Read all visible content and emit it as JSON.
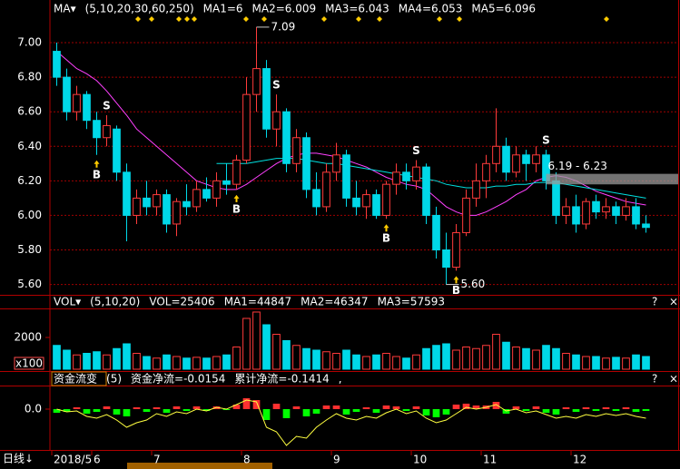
{
  "chart_data": [
    {
      "type": "candlestick",
      "header": [
        {
          "text": "MA▾",
          "color": "#ffffff"
        },
        {
          "text": "(5,10,20,30,60,250)",
          "color": "#ffff00"
        },
        {
          "text": "MA1=6",
          "color": "#ffffff"
        },
        {
          "text": "MA2=6.009",
          "color": "#ffff00"
        },
        {
          "text": "MA3=6.043",
          "color": "#ff40ff"
        },
        {
          "text": "MA4=6.053",
          "color": "#ff6060"
        },
        {
          "text": "MA5=6.096",
          "color": "#00ffff"
        }
      ],
      "categories": [
        "2018/5",
        null,
        null,
        null,
        "6",
        null,
        null,
        null,
        null,
        null,
        "7",
        null,
        null,
        null,
        null,
        null,
        null,
        null,
        null,
        "8",
        null,
        null,
        null,
        null,
        null,
        null,
        null,
        null,
        "9",
        null,
        null,
        null,
        null,
        null,
        null,
        null,
        "10",
        null,
        null,
        null,
        null,
        null,
        null,
        "11",
        null,
        null,
        null,
        null,
        null,
        null,
        null,
        null,
        "12",
        null,
        null,
        null,
        null,
        null,
        null,
        null
      ],
      "ohlc": [
        [
          6.95,
          7.0,
          6.75,
          6.8
        ],
        [
          6.8,
          6.85,
          6.55,
          6.6
        ],
        [
          6.6,
          6.75,
          6.55,
          6.7
        ],
        [
          6.7,
          6.72,
          6.5,
          6.55
        ],
        [
          6.55,
          6.6,
          6.35,
          6.45
        ],
        [
          6.45,
          6.58,
          6.4,
          6.52
        ],
        [
          6.5,
          6.52,
          6.2,
          6.25
        ],
        [
          6.25,
          6.3,
          5.85,
          6.0
        ],
        [
          6.0,
          6.15,
          5.95,
          6.1
        ],
        [
          6.1,
          6.2,
          6.0,
          6.05
        ],
        [
          6.05,
          6.15,
          6.0,
          6.12
        ],
        [
          6.12,
          6.15,
          5.9,
          5.95
        ],
        [
          5.95,
          6.1,
          5.88,
          6.08
        ],
        [
          6.08,
          6.18,
          6.0,
          6.05
        ],
        [
          6.05,
          6.2,
          6.02,
          6.15
        ],
        [
          6.15,
          6.22,
          6.08,
          6.1
        ],
        [
          6.1,
          6.25,
          6.05,
          6.2
        ],
        [
          6.2,
          6.3,
          6.12,
          6.18
        ],
        [
          6.18,
          6.35,
          6.15,
          6.32
        ],
        [
          6.32,
          6.8,
          6.3,
          6.7
        ],
        [
          6.7,
          7.09,
          6.6,
          6.85
        ],
        [
          6.85,
          6.9,
          6.45,
          6.5
        ],
        [
          6.5,
          6.7,
          6.4,
          6.6
        ],
        [
          6.6,
          6.62,
          6.25,
          6.3
        ],
        [
          6.3,
          6.5,
          6.25,
          6.45
        ],
        [
          6.45,
          6.48,
          6.1,
          6.15
        ],
        [
          6.15,
          6.25,
          6.0,
          6.05
        ],
        [
          6.05,
          6.3,
          6.02,
          6.25
        ],
        [
          6.25,
          6.42,
          6.2,
          6.35
        ],
        [
          6.35,
          6.38,
          6.05,
          6.1
        ],
        [
          6.1,
          6.2,
          6.0,
          6.05
        ],
        [
          6.05,
          6.15,
          5.98,
          6.12
        ],
        [
          6.12,
          6.15,
          5.98,
          6.0
        ],
        [
          6.0,
          6.2,
          5.98,
          6.18
        ],
        [
          6.18,
          6.3,
          6.12,
          6.25
        ],
        [
          6.25,
          6.3,
          6.15,
          6.2
        ],
        [
          6.2,
          6.32,
          6.15,
          6.28
        ],
        [
          6.28,
          6.3,
          5.95,
          6.0
        ],
        [
          6.0,
          6.05,
          5.75,
          5.8
        ],
        [
          5.8,
          5.9,
          5.6,
          5.7
        ],
        [
          5.7,
          5.95,
          5.68,
          5.9
        ],
        [
          5.9,
          6.15,
          5.88,
          6.1
        ],
        [
          6.1,
          6.3,
          6.05,
          6.2
        ],
        [
          6.2,
          6.35,
          6.1,
          6.3
        ],
        [
          6.3,
          6.62,
          6.25,
          6.4
        ],
        [
          6.4,
          6.45,
          6.2,
          6.25
        ],
        [
          6.25,
          6.4,
          6.22,
          6.35
        ],
        [
          6.35,
          6.38,
          6.2,
          6.3
        ],
        [
          6.3,
          6.4,
          6.25,
          6.35
        ],
        [
          6.35,
          6.38,
          6.15,
          6.2
        ],
        [
          6.2,
          6.25,
          5.95,
          6.0
        ],
        [
          6.0,
          6.1,
          5.95,
          6.05
        ],
        [
          6.05,
          6.12,
          5.9,
          5.95
        ],
        [
          5.95,
          6.1,
          5.92,
          6.08
        ],
        [
          6.08,
          6.12,
          5.98,
          6.02
        ],
        [
          6.02,
          6.1,
          5.98,
          6.05
        ],
        [
          6.05,
          6.08,
          5.95,
          6.0
        ],
        [
          6.0,
          6.1,
          5.97,
          6.05
        ],
        [
          6.05,
          6.1,
          5.92,
          5.95
        ],
        [
          5.95,
          6.0,
          5.9,
          5.93
        ]
      ],
      "up_color": "#ff3b3b",
      "down_color": "#00d8e8",
      "lines": [
        {
          "color": "#ff40ff",
          "values": [
            6.95,
            6.9,
            6.85,
            6.82,
            6.78,
            6.72,
            6.65,
            6.58,
            6.5,
            6.45,
            6.4,
            6.35,
            6.3,
            6.25,
            6.2,
            6.18,
            6.16,
            6.15,
            6.15,
            6.18,
            6.22,
            6.26,
            6.3,
            6.33,
            6.35,
            6.36,
            6.36,
            6.35,
            6.34,
            6.32,
            6.3,
            6.28,
            6.25,
            6.22,
            6.2,
            6.18,
            6.17,
            6.15,
            6.1,
            6.05,
            6.02,
            6.0,
            6.0,
            6.02,
            6.05,
            6.08,
            6.12,
            6.15,
            6.2,
            6.22,
            6.23,
            6.22,
            6.2,
            6.17,
            6.14,
            6.12,
            6.1,
            6.08,
            6.07,
            6.06
          ]
        },
        {
          "color": "#00e0e0",
          "values": [
            null,
            null,
            null,
            null,
            null,
            null,
            null,
            null,
            null,
            null,
            null,
            null,
            null,
            null,
            null,
            null,
            6.3,
            6.3,
            6.3,
            6.3,
            6.31,
            6.32,
            6.33,
            6.33,
            6.33,
            6.32,
            6.31,
            6.3,
            6.3,
            6.29,
            6.28,
            6.27,
            6.26,
            6.25,
            6.24,
            6.23,
            6.22,
            6.21,
            6.2,
            6.18,
            6.17,
            6.16,
            6.16,
            6.16,
            6.17,
            6.17,
            6.18,
            6.18,
            6.19,
            6.19,
            6.19,
            6.18,
            6.17,
            6.16,
            6.15,
            6.14,
            6.13,
            6.12,
            6.11,
            6.1
          ]
        }
      ],
      "ylim": [
        5.54,
        7.1
      ],
      "yticks": [
        {
          "value": 5.6,
          "label": "5.60"
        },
        {
          "value": 5.8,
          "label": "5.80"
        },
        {
          "value": 6.0,
          "label": "6.00"
        },
        {
          "value": 6.2,
          "label": "6.20"
        },
        {
          "value": 6.4,
          "label": "6.40"
        },
        {
          "value": 6.6,
          "label": "6.60"
        },
        {
          "value": 6.8,
          "label": "6.80"
        },
        {
          "value": 7.0,
          "label": "7.00"
        }
      ],
      "grid": true,
      "axis_color": "#ff4a4a",
      "high_label": {
        "index": 20,
        "value": 7.09
      },
      "low_label": {
        "index": 39,
        "value": 5.6,
        "label": "5.60"
      },
      "range_band": {
        "from": 6.19,
        "to": 6.23,
        "label": "6.19 - 6.23",
        "start_index": 49
      },
      "signals": [
        {
          "index": 4,
          "label": "B"
        },
        {
          "index": 5,
          "label": "S"
        },
        {
          "index": 18,
          "label": "B"
        },
        {
          "index": 22,
          "label": "S"
        },
        {
          "index": 33,
          "label": "B"
        },
        {
          "index": 36,
          "label": "S"
        },
        {
          "index": 40,
          "label": "B"
        },
        {
          "index": 49,
          "label": "S"
        }
      ]
    },
    {
      "type": "bar",
      "header": [
        {
          "text": "VOL▾",
          "color": "#ffffff"
        },
        {
          "text": "(5,10,20)",
          "color": "#ffff00"
        },
        {
          "text": "VOL=25406",
          "color": "#ffffff"
        },
        {
          "text": "MA1=44847",
          "color": "#ffff00"
        },
        {
          "text": "MA2=46347",
          "color": "#ff40ff"
        },
        {
          "text": "MA3=57593",
          "color": "#ff6060"
        }
      ],
      "values": [
        1500,
        1200,
        900,
        1000,
        1100,
        900,
        1300,
        1600,
        1000,
        800,
        700,
        900,
        800,
        700,
        750,
        700,
        800,
        900,
        1400,
        3200,
        3600,
        2800,
        2200,
        1800,
        1500,
        1300,
        1200,
        1100,
        1000,
        1200,
        900,
        800,
        900,
        1000,
        800,
        700,
        900,
        1300,
        1500,
        1600,
        1200,
        1400,
        1300,
        1500,
        2200,
        1700,
        1400,
        1300,
        1200,
        1500,
        1300,
        1000,
        900,
        800,
        800,
        700,
        750,
        700,
        900,
        800
      ],
      "ylim": [
        0,
        3770
      ],
      "yticks": [
        2000
      ],
      "unit": "x100",
      "axis_color": "#ff4a4a"
    },
    {
      "type": "flow",
      "header": [
        {
          "text": "资金流变",
          "color": "#ffffff"
        },
        {
          "text": "(5)",
          "color": "#ffffff"
        },
        {
          "text": "资金净流=-0.0154",
          "color": "#ffffff"
        },
        {
          "text": "累计净流=-0.1414",
          "color": "#ffff00"
        },
        {
          "text": ",",
          "color": "#ffffff"
        }
      ],
      "values": [
        -0.04,
        -0.03,
        0.02,
        -0.05,
        -0.03,
        0.03,
        -0.06,
        -0.08,
        0.02,
        -0.03,
        0.02,
        -0.04,
        0.03,
        -0.02,
        0.03,
        -0.02,
        0.03,
        -0.01,
        0.05,
        0.12,
        0.1,
        -0.12,
        0.06,
        -0.1,
        0.03,
        -0.08,
        -0.05,
        0.04,
        0.04,
        -0.06,
        -0.03,
        0.02,
        -0.04,
        0.04,
        0.03,
        -0.02,
        0.03,
        -0.07,
        -0.09,
        -0.06,
        0.05,
        0.06,
        0.04,
        0.04,
        0.08,
        -0.05,
        0.03,
        -0.02,
        0.03,
        -0.04,
        -0.06,
        0.02,
        -0.03,
        0.02,
        -0.02,
        0.02,
        -0.02,
        0.02,
        -0.03,
        -0.02
      ],
      "line_values": [
        0.0,
        -0.03,
        -0.02,
        -0.08,
        -0.1,
        -0.06,
        -0.12,
        -0.2,
        -0.15,
        -0.12,
        -0.05,
        -0.08,
        -0.03,
        -0.05,
        0.0,
        -0.02,
        0.02,
        0.0,
        0.05,
        0.1,
        0.08,
        -0.2,
        -0.25,
        -0.4,
        -0.3,
        -0.32,
        -0.2,
        -0.12,
        -0.05,
        -0.1,
        -0.12,
        -0.08,
        -0.1,
        -0.04,
        0.0,
        -0.05,
        -0.02,
        -0.1,
        -0.15,
        -0.12,
        -0.05,
        0.02,
        0.0,
        0.02,
        0.05,
        -0.02,
        0.0,
        -0.04,
        -0.02,
        -0.06,
        -0.1,
        -0.08,
        -0.1,
        -0.06,
        -0.08,
        -0.05,
        -0.07,
        -0.05,
        -0.08,
        -0.1
      ],
      "line_color": "#ffff40",
      "positive_color": "#ff3030",
      "negative_color": "#00ff00",
      "ylim": [
        -0.43,
        0.25
      ],
      "yticks": [
        {
          "value": 0,
          "label": "0.0"
        }
      ],
      "axis_color": "#ff4a4a"
    }
  ],
  "period": "日线↓",
  "panel_buttons": [
    "?",
    "×"
  ]
}
